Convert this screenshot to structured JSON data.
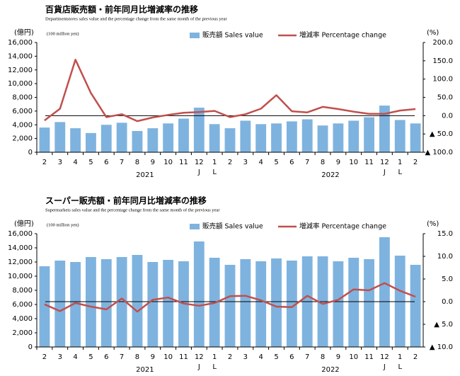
{
  "chart_data": [
    {
      "type": "combo",
      "title": "百貨店販売額・前年同月比増減率の推移",
      "subtitle": "Departmentstores sales value and the percentage change from the same month of the previous year",
      "y_unit": "(億円)",
      "y_unit_en": "(100 million yen)",
      "y2_unit": "(%)",
      "categories": [
        "2",
        "3",
        "4",
        "5",
        "6",
        "7",
        "8",
        "9",
        "10",
        "11",
        "12",
        "1",
        "2",
        "3",
        "4",
        "5",
        "6",
        "7",
        "8",
        "9",
        "10",
        "11",
        "12",
        "1",
        "2"
      ],
      "years": [
        "2021",
        "2022"
      ],
      "year_marks": [
        "J",
        "L",
        "J",
        "L"
      ],
      "series": [
        {
          "name": "販売額 Sales value",
          "type": "bar",
          "color": "#7fb3df",
          "values": [
            3600,
            4400,
            3500,
            2800,
            4000,
            4300,
            3100,
            3500,
            4200,
            4900,
            6500,
            4100,
            3500,
            4600,
            4100,
            4200,
            4500,
            4800,
            3900,
            4200,
            4600,
            5100,
            6800,
            4700,
            4200
          ]
        },
        {
          "name": "増減率 Percentage change",
          "type": "line",
          "axis": "y2",
          "color": "#c0504d",
          "values": [
            -13,
            19,
            153,
            62,
            -4,
            4,
            -15,
            -5,
            2,
            8,
            10,
            13,
            -4,
            4,
            19,
            56,
            12,
            9,
            24,
            18,
            11,
            5,
            5,
            14,
            18
          ]
        }
      ],
      "ylim": [
        0,
        16000
      ],
      "yticks": [
        0,
        {
          "value": 2000,
          "label": "2,000"
        },
        {
          "value": 4000,
          "label": "4,000"
        },
        {
          "value": 6000,
          "label": "6,000"
        },
        {
          "value": 8000,
          "label": "8,000"
        },
        {
          "value": 10000,
          "label": "10,000"
        },
        {
          "value": 12000,
          "label": "12,000"
        },
        {
          "value": 14000,
          "label": "14,000"
        },
        {
          "value": 16000,
          "label": "16,000"
        }
      ],
      "y2lim": [
        -100,
        200
      ],
      "y2ticks": [
        {
          "value": 200,
          "label": "200.0"
        },
        {
          "value": 150,
          "label": "150.0"
        },
        {
          "value": 100,
          "label": "100.0"
        },
        {
          "value": 50,
          "label": "50.0"
        },
        {
          "value": 0,
          "label": "0.0"
        },
        {
          "value": -50,
          "label": "▲ 50.0"
        },
        {
          "value": -100,
          "label": "▲ 100.0"
        }
      ],
      "zero_line": true
    },
    {
      "type": "combo",
      "title": "スーパー販売額・前年同月比増減率の推移",
      "subtitle": "Supermarkets sales value and the percentage change from the same month of the previous year",
      "y_unit": "(億円)",
      "y_unit_en": "(100 million yen)",
      "y2_unit": "(%)",
      "categories": [
        "2",
        "3",
        "4",
        "5",
        "6",
        "7",
        "8",
        "9",
        "10",
        "11",
        "12",
        "1",
        "2",
        "3",
        "4",
        "5",
        "6",
        "7",
        "8",
        "9",
        "10",
        "11",
        "12",
        "1",
        "2"
      ],
      "years": [
        "2021",
        "2022"
      ],
      "year_marks": [
        "J",
        "L",
        "J",
        "L"
      ],
      "series": [
        {
          "name": "販売額 Sales value",
          "type": "bar",
          "color": "#7fb3df",
          "values": [
            11400,
            12200,
            12000,
            12700,
            12400,
            12700,
            13000,
            12000,
            12300,
            12100,
            14900,
            12600,
            11600,
            12400,
            12100,
            12500,
            12200,
            12800,
            12800,
            12100,
            12600,
            12400,
            15500,
            12900,
            11600
          ]
        },
        {
          "name": "増減率 Percentage change",
          "type": "line",
          "axis": "y2",
          "color": "#c0504d",
          "values": [
            -0.6,
            -2.1,
            -0.3,
            -1.1,
            -1.7,
            0.7,
            -2.2,
            0.4,
            0.9,
            -0.4,
            -0.9,
            -0.3,
            1.2,
            1.3,
            0.3,
            -1.1,
            -1.2,
            1.3,
            -0.5,
            0.4,
            2.7,
            2.5,
            4.1,
            2.4,
            1.1
          ]
        }
      ],
      "ylim": [
        0,
        16000
      ],
      "yticks": [
        0,
        {
          "value": 2000,
          "label": "2,000"
        },
        {
          "value": 4000,
          "label": "4,000"
        },
        {
          "value": 6000,
          "label": "6,000"
        },
        {
          "value": 8000,
          "label": "8,000"
        },
        {
          "value": 10000,
          "label": "10,000"
        },
        {
          "value": 12000,
          "label": "12,000"
        },
        {
          "value": 14000,
          "label": "14,000"
        },
        {
          "value": 16000,
          "label": "16,000"
        }
      ],
      "y2lim": [
        -10,
        15
      ],
      "y2ticks": [
        {
          "value": 15,
          "label": "15.0"
        },
        {
          "value": 10,
          "label": "10.0"
        },
        {
          "value": 5,
          "label": "5.0"
        },
        {
          "value": 0,
          "label": "0.0"
        },
        {
          "value": -5,
          "label": "▲ 5.0"
        },
        {
          "value": -10,
          "label": "▲ 10.0"
        }
      ],
      "zero_line": true
    }
  ]
}
